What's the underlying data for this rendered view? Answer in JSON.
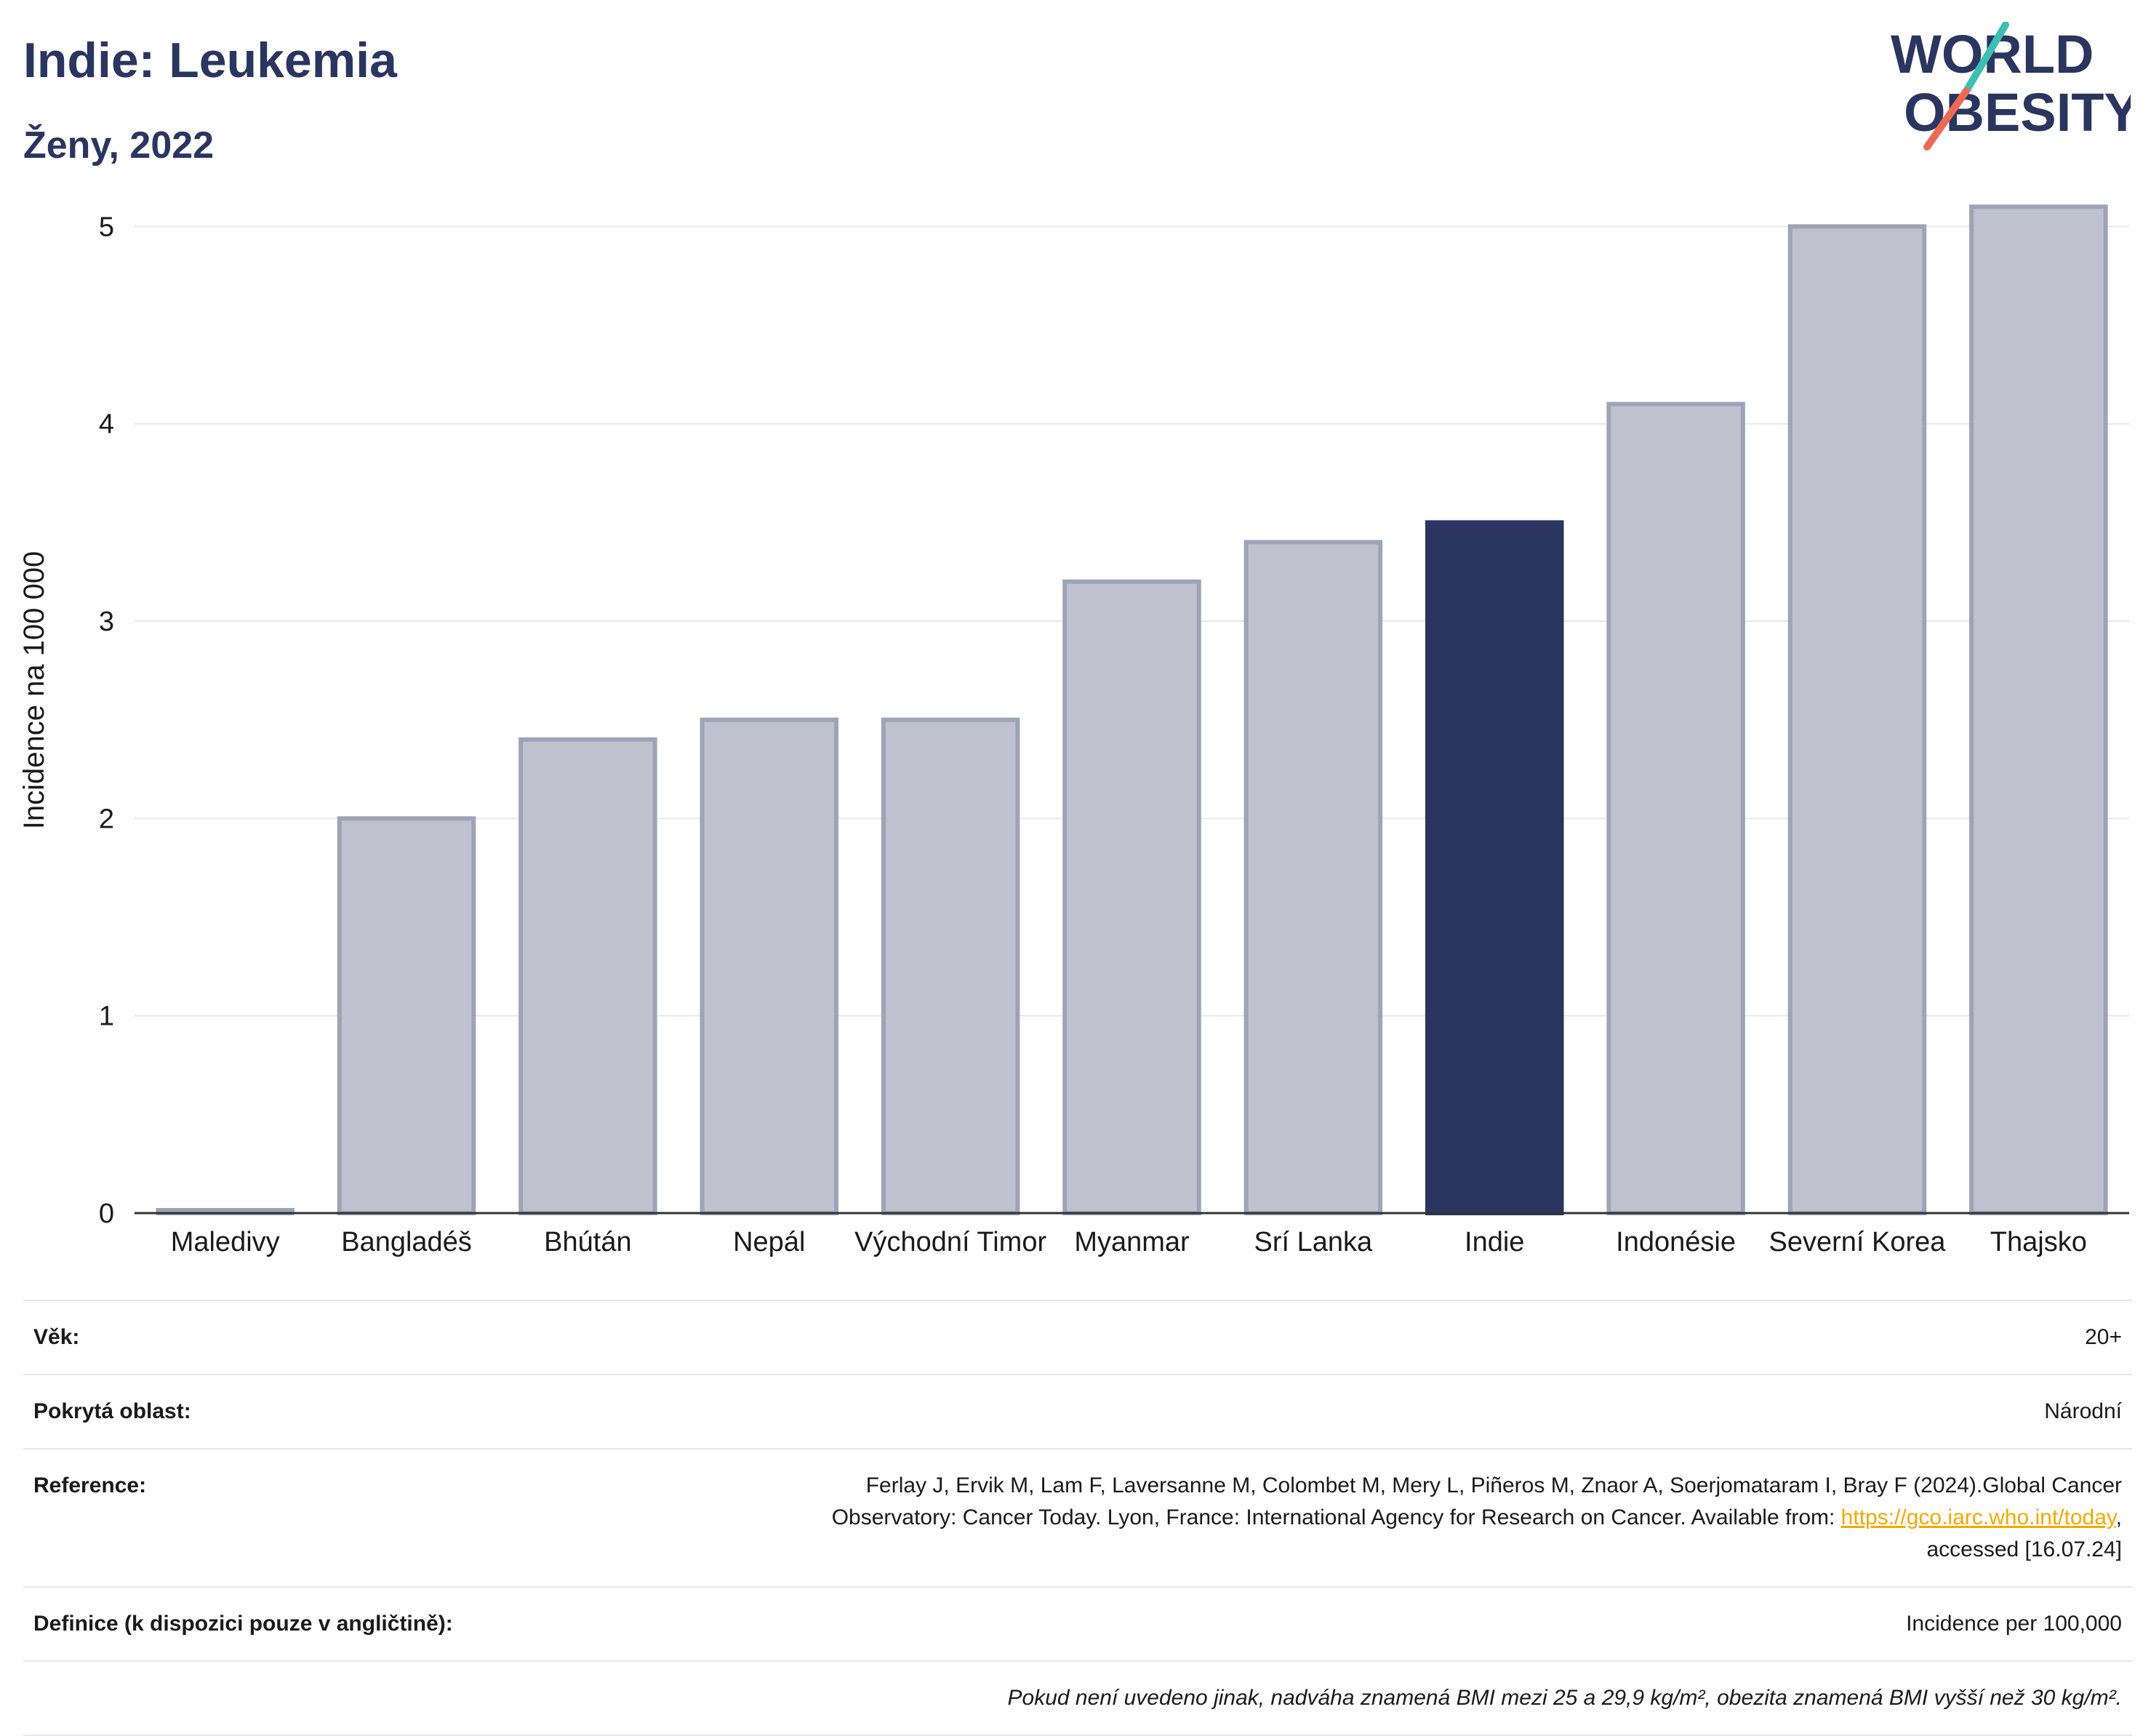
{
  "header": {
    "title": "Indie: Leukemia",
    "subtitle": "Ženy, 2022"
  },
  "logo": {
    "line1": "WORLD",
    "line2": "OBESITY",
    "slash_colors": [
      "#3bbfb3",
      "#ec6a55"
    ]
  },
  "colors": {
    "highlight_bar": "#2a3560",
    "other_bar": "#bfc2ce",
    "other_bar_border": "#9ea3b8",
    "link": "#f2a900"
  },
  "chart_data": {
    "type": "bar",
    "title": "Indie: Leukemia",
    "subtitle": "Ženy, 2022",
    "ylabel": "Incidence na 100 000",
    "xlabel": "",
    "ylim": [
      0,
      5.3
    ],
    "yticks": [
      0,
      1,
      2,
      3,
      4,
      5
    ],
    "grid": true,
    "legend": "none",
    "categories": [
      "Maledivy",
      "Bangladéš",
      "Bhútán",
      "Nepál",
      "Východní Timor",
      "Myanmar",
      "Srí Lanka",
      "Indie",
      "Indonésie",
      "Severní Korea",
      "Thajsko"
    ],
    "values": [
      0.0,
      2.0,
      2.4,
      2.5,
      2.5,
      3.2,
      3.4,
      3.5,
      4.1,
      5.0,
      5.1
    ],
    "highlight": "Indie"
  },
  "meta": {
    "age_label": "Věk:",
    "age_value": "20+",
    "coverage_label": "Pokrytá oblast:",
    "coverage_value": "Národní",
    "reference_label": "Reference:",
    "reference_text_1": "Ferlay J, Ervik M, Lam F, Laversanne M, Colombet M, Mery L, Piñeros M, Znaor A, Soerjomataram I, Bray F (2024).Global Cancer",
    "reference_text_2": "Observatory: Cancer Today. Lyon, France: International Agency for Research on Cancer. Available from: ",
    "reference_link": "https://gco.iarc.who.int/today",
    "reference_text_3": ",",
    "reference_text_4": "accessed [16.07.24]",
    "definition_label": "Definice (k dispozici pouze v angličtině):",
    "definition_value": "Incidence per 100,000",
    "note": "Pokud není uvedeno jinak, nadváha znamená BMI mezi 25 a 29,9 kg/m², obezita znamená BMI vyšší než 30 kg/m²."
  }
}
